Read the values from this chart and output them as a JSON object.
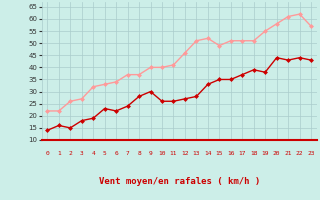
{
  "hours": [
    0,
    1,
    2,
    3,
    4,
    5,
    6,
    7,
    8,
    9,
    10,
    11,
    12,
    13,
    14,
    15,
    16,
    17,
    18,
    19,
    20,
    21,
    22,
    23
  ],
  "wind_avg": [
    14,
    16,
    15,
    18,
    19,
    23,
    22,
    24,
    28,
    30,
    26,
    26,
    27,
    28,
    33,
    35,
    35,
    37,
    39,
    38,
    44,
    43,
    44,
    43
  ],
  "wind_gust": [
    22,
    22,
    26,
    27,
    32,
    33,
    34,
    37,
    37,
    40,
    40,
    41,
    46,
    51,
    52,
    49,
    51,
    51,
    51,
    55,
    58,
    61,
    62,
    57
  ],
  "avg_color": "#cc0000",
  "gust_color": "#ff9999",
  "bg_color": "#cceee8",
  "grid_color": "#aacccc",
  "xlabel": "Vent moyen/en rafales ( km/h )",
  "xlabel_color": "#cc0000",
  "ylim": [
    10,
    67
  ],
  "yticks": [
    10,
    15,
    20,
    25,
    30,
    35,
    40,
    45,
    50,
    55,
    60,
    65
  ],
  "marker_size": 2.5,
  "linewidth": 1.0
}
